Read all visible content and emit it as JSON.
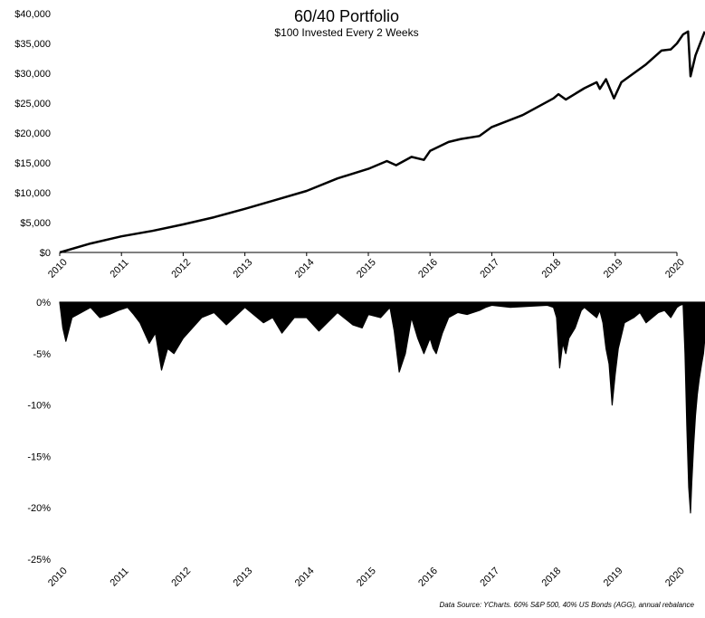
{
  "chart_data": [
    {
      "type": "line",
      "title": "60/40 Portfolio",
      "subtitle": "$100 Invested Every 2 Weeks",
      "xlabel": "",
      "ylabel": "",
      "ylim": [
        0,
        40000
      ],
      "grid": false,
      "color": "#000000",
      "x_ticks": [
        "2010",
        "2011",
        "2012",
        "2013",
        "2014",
        "2015",
        "2016",
        "2017",
        "2018",
        "2019",
        "2020"
      ],
      "y_ticks": [
        "$0",
        "$5,000",
        "$10,000",
        "$15,000",
        "$20,000",
        "$25,000",
        "$30,000",
        "$35,000",
        "$40,000"
      ],
      "y_tick_values": [
        0,
        5000,
        10000,
        15000,
        20000,
        25000,
        30000,
        35000,
        40000
      ],
      "series": [
        {
          "x": [
            2010.0,
            2010.5,
            2011.0,
            2011.5,
            2012.0,
            2012.5,
            2013.0,
            2013.5,
            2014.0,
            2014.5,
            2015.0,
            2015.3,
            2015.45,
            2015.7,
            2015.9,
            2016.0,
            2016.3,
            2016.5,
            2016.8,
            2017.0,
            2017.5,
            2018.0,
            2018.08,
            2018.2,
            2018.5,
            2018.7,
            2018.75,
            2018.85,
            2018.98,
            2019.1,
            2019.5,
            2019.75,
            2019.9,
            2020.0,
            2020.1,
            2020.18,
            2020.22,
            2020.3,
            2020.45
          ],
          "values": [
            0,
            1500,
            2700,
            3600,
            4700,
            5900,
            7300,
            8800,
            10300,
            12400,
            14000,
            15300,
            14600,
            16000,
            15500,
            17000,
            18500,
            19000,
            19500,
            21000,
            23000,
            25800,
            26500,
            25600,
            27500,
            28500,
            27400,
            29000,
            25800,
            28500,
            31500,
            33800,
            34000,
            35000,
            36500,
            37000,
            29500,
            33000,
            37000
          ]
        }
      ]
    },
    {
      "type": "area",
      "title": "",
      "xlabel": "",
      "ylabel": "",
      "ylim": [
        -25,
        0
      ],
      "grid": false,
      "color": "#000000",
      "x_ticks": [
        "2010",
        "2011",
        "2012",
        "2013",
        "2014",
        "2015",
        "2016",
        "2017",
        "2018",
        "2019",
        "2020"
      ],
      "y_ticks": [
        "0%",
        "-5%",
        "-10%",
        "-15%",
        "-20%",
        "-25%"
      ],
      "y_tick_values": [
        0,
        -5,
        -10,
        -15,
        -20,
        -25
      ],
      "series": [
        {
          "x": [
            2010.0,
            2010.05,
            2010.1,
            2010.2,
            2010.35,
            2010.5,
            2010.65,
            2010.8,
            2010.95,
            2011.1,
            2011.2,
            2011.3,
            2011.45,
            2011.55,
            2011.65,
            2011.75,
            2011.85,
            2012.0,
            2012.3,
            2012.5,
            2012.7,
            2013.0,
            2013.3,
            2013.45,
            2013.6,
            2013.8,
            2014.0,
            2014.2,
            2014.5,
            2014.75,
            2014.9,
            2015.0,
            2015.2,
            2015.35,
            2015.42,
            2015.5,
            2015.6,
            2015.7,
            2015.8,
            2015.9,
            2016.0,
            2016.05,
            2016.1,
            2016.2,
            2016.3,
            2016.45,
            2016.6,
            2016.8,
            2016.9,
            2017.0,
            2017.3,
            2017.6,
            2017.9,
            2018.0,
            2018.05,
            2018.1,
            2018.15,
            2018.2,
            2018.25,
            2018.35,
            2018.45,
            2018.5,
            2018.6,
            2018.7,
            2018.75,
            2018.8,
            2018.85,
            2018.9,
            2018.95,
            2019.0,
            2019.05,
            2019.15,
            2019.3,
            2019.4,
            2019.5,
            2019.6,
            2019.7,
            2019.8,
            2019.9,
            2020.0,
            2020.05,
            2020.1,
            2020.13,
            2020.16,
            2020.19,
            2020.22,
            2020.24,
            2020.27,
            2020.3,
            2020.33,
            2020.36,
            2020.4,
            2020.43,
            2020.46,
            2020.5
          ],
          "values": [
            0,
            -2.5,
            -3.8,
            -1.5,
            -1.0,
            -0.5,
            -1.5,
            -1.2,
            -0.8,
            -0.5,
            -1.2,
            -2.0,
            -4.0,
            -3.0,
            -6.6,
            -4.5,
            -5.0,
            -3.5,
            -1.5,
            -1.0,
            -2.2,
            -0.5,
            -2.0,
            -1.5,
            -3.0,
            -1.5,
            -1.5,
            -2.8,
            -1.0,
            -2.2,
            -2.5,
            -1.2,
            -1.5,
            -0.5,
            -2.8,
            -6.8,
            -5.0,
            -1.5,
            -3.5,
            -5.0,
            -3.5,
            -4.5,
            -5.0,
            -3.0,
            -1.5,
            -1.0,
            -1.2,
            -0.8,
            -0.5,
            -0.3,
            -0.5,
            -0.4,
            -0.3,
            -0.5,
            -1.5,
            -6.4,
            -4.0,
            -5.0,
            -3.5,
            -2.5,
            -0.8,
            -0.5,
            -1.0,
            -1.5,
            -0.8,
            -2.0,
            -4.5,
            -6.0,
            -10.0,
            -7.0,
            -4.5,
            -2.0,
            -1.5,
            -1.0,
            -2.0,
            -1.5,
            -1.0,
            -0.8,
            -1.5,
            -0.5,
            -0.3,
            -0.2,
            -5.0,
            -12.0,
            -18.0,
            -20.5,
            -17.5,
            -14.0,
            -11.0,
            -9.0,
            -7.5,
            -6.0,
            -5.0,
            -3.0,
            0
          ]
        }
      ]
    }
  ],
  "source_note": "Data Source: YCharts. 60% S&P 500, 40% US Bonds (AGG), annual rebalance"
}
